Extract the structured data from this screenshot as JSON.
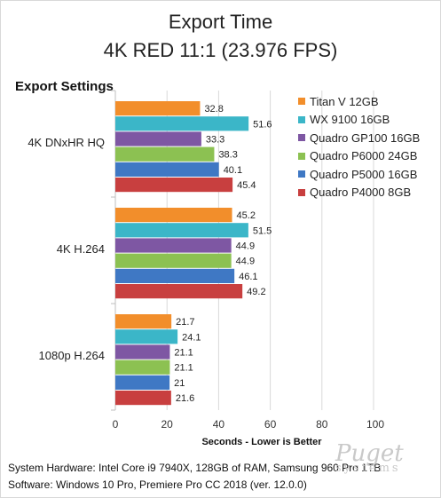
{
  "chart_data": {
    "type": "bar",
    "orientation": "horizontal",
    "title": "Export Time",
    "subtitle": "4K RED 11:1 (23.976 FPS)",
    "section_label": "Export Settings",
    "xlabel": "Seconds - Lower is Better",
    "xlim": [
      0,
      110
    ],
    "x_ticks": [
      "0",
      "20",
      "40",
      "60",
      "80",
      "100"
    ],
    "grid": "vertical",
    "legend_position": "right",
    "categories": [
      "4K DNxHR HQ",
      "4K H.264",
      "1080p H.264"
    ],
    "series": [
      {
        "name": "Titan V 12GB",
        "color": "#f28e2b",
        "values": [
          32.8,
          45.2,
          21.7
        ],
        "labels": [
          "32.8",
          "45.2",
          "21.7"
        ]
      },
      {
        "name": "WX 9100 16GB",
        "color": "#3bb6c8",
        "values": [
          51.6,
          51.5,
          24.1
        ],
        "labels": [
          "51.6",
          "51.5",
          "24.1"
        ]
      },
      {
        "name": "Quadro GP100 16GB",
        "color": "#7e57a3",
        "values": [
          33.3,
          44.9,
          21.1
        ],
        "labels": [
          "33.3",
          "44.9",
          "21.1"
        ]
      },
      {
        "name": "Quadro P6000 24GB",
        "color": "#8cc152",
        "values": [
          38.3,
          44.9,
          21.1
        ],
        "labels": [
          "38.3",
          "44.9",
          "21.1"
        ]
      },
      {
        "name": "Quadro P5000 16GB",
        "color": "#3f78c4",
        "values": [
          40.1,
          46.1,
          21.0
        ],
        "labels": [
          "40.1",
          "46.1",
          "21"
        ]
      },
      {
        "name": "Quadro P4000 8GB",
        "color": "#c83f3f",
        "values": [
          45.4,
          49.2,
          21.6
        ],
        "labels": [
          "45.4",
          "49.2",
          "21.6"
        ]
      }
    ]
  },
  "footer": {
    "line1": "System Hardware: Intel Core i9 7940X,  128GB of RAM, Samsung 960 Pro 1TB",
    "line2": "Software: Windows 10 Pro, Premiere Pro CC 2018  (ver. 12.0.0)"
  },
  "watermark": {
    "top": "Puget",
    "bottom": "systems"
  }
}
